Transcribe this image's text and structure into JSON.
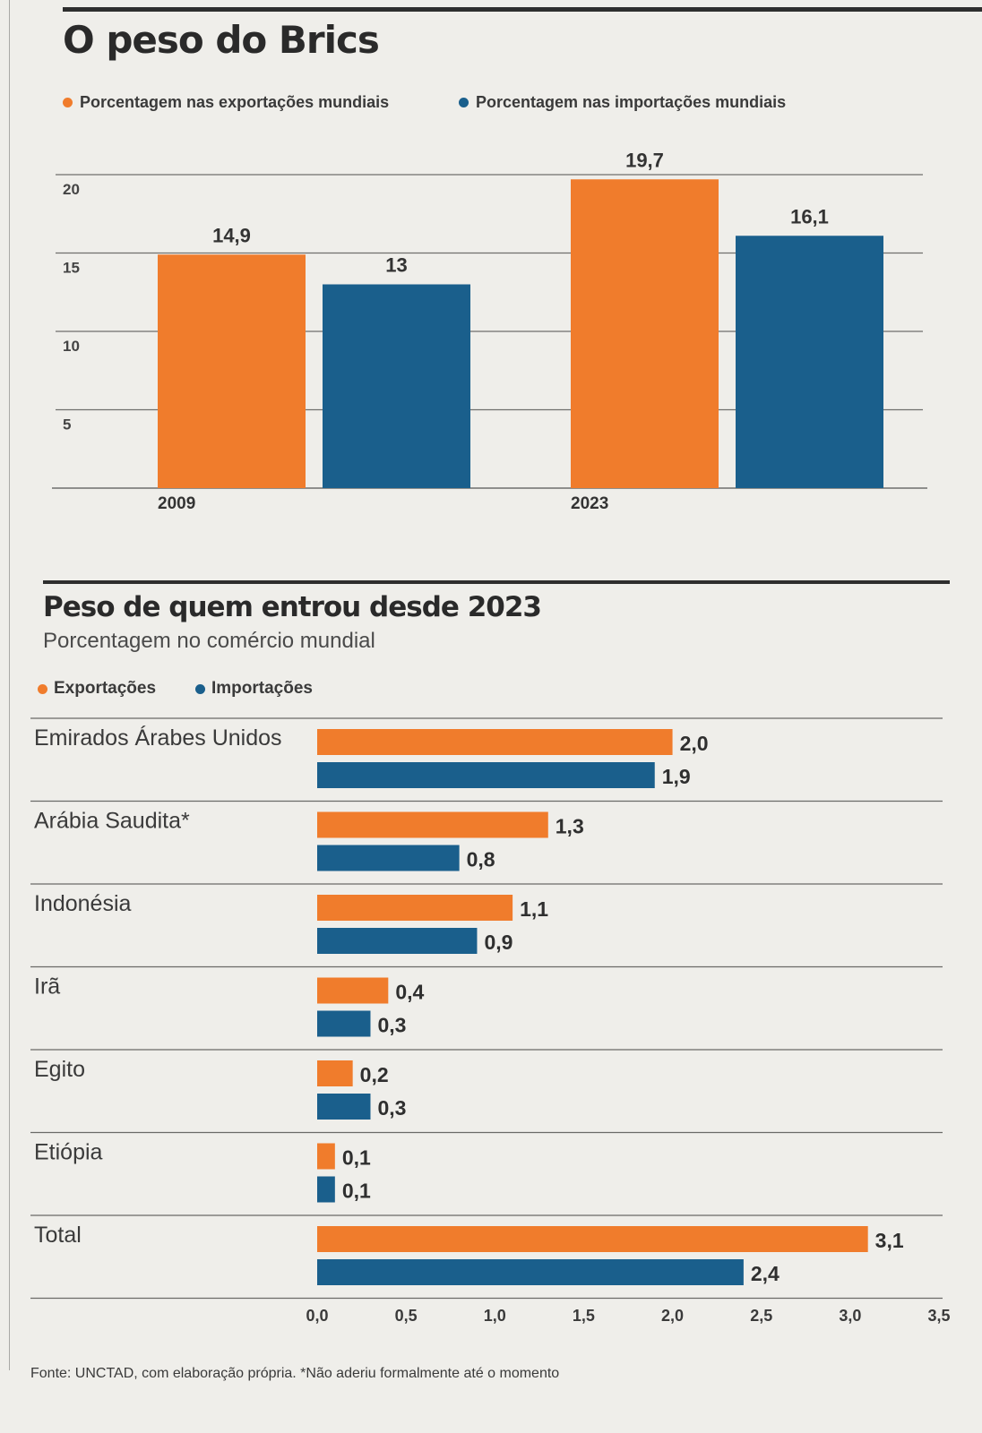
{
  "colors": {
    "exports": "#f07c2c",
    "imports": "#1a5f8c"
  },
  "top_chart_header": {
    "title": "O peso do Brics",
    "legend": [
      {
        "label": "Porcentagem nas exportações mundiais",
        "series": "exports"
      },
      {
        "label": "Porcentagem nas importações mundiais",
        "series": "imports"
      }
    ]
  },
  "bottom_chart_header": {
    "title": "Peso de quem entrou desde 2023",
    "subtitle": "Porcentagem no comércio mundial",
    "legend": [
      {
        "label": "Exportações",
        "series": "exports"
      },
      {
        "label": "Importações",
        "series": "imports"
      }
    ]
  },
  "footer": {
    "source": "Fonte: UNCTAD, com elaboração própria. *Não aderiu formalmente até o momento"
  },
  "chart_data": [
    {
      "type": "bar",
      "title": "O peso do Brics",
      "categories": [
        "2009",
        "2023"
      ],
      "series": [
        {
          "name": "Porcentagem nas exportações mundiais",
          "values": [
            14.9,
            19.7
          ],
          "labels": [
            "14,9",
            "19,7"
          ],
          "color": "#f07c2c"
        },
        {
          "name": "Porcentagem nas importações mundiais",
          "values": [
            13,
            16.1
          ],
          "labels": [
            "13",
            "16,1"
          ],
          "color": "#1a5f8c"
        }
      ],
      "yticks": [
        5,
        10,
        15,
        20
      ],
      "ylim": [
        0,
        20
      ],
      "xlabel": "",
      "ylabel": "",
      "grid": true,
      "legend": "top-left"
    },
    {
      "type": "bar",
      "orientation": "horizontal",
      "title": "Peso de quem entrou desde 2023",
      "subtitle": "Porcentagem no comércio mundial",
      "categories": [
        "Emirados Árabes Unidos",
        "Arábia Saudita*",
        "Indonésia",
        "Irã",
        "Egito",
        "Etiópia",
        "Total"
      ],
      "series": [
        {
          "name": "Exportações",
          "values": [
            2.0,
            1.3,
            1.1,
            0.4,
            0.2,
            0.1,
            3.1
          ],
          "labels": [
            "2,0",
            "1,3",
            "1,1",
            "0,4",
            "0,2",
            "0,1",
            "3,1"
          ],
          "color": "#f07c2c"
        },
        {
          "name": "Importações",
          "values": [
            1.9,
            0.8,
            0.9,
            0.3,
            0.3,
            0.1,
            2.4
          ],
          "labels": [
            "1,9",
            "0,8",
            "0,9",
            "0,3",
            "0,3",
            "0,1",
            "2,4"
          ],
          "color": "#1a5f8c"
        }
      ],
      "xticks": [
        0,
        0.5,
        1.0,
        1.5,
        2.0,
        2.5,
        3.0,
        3.5
      ],
      "xtick_labels": [
        "0,0",
        "0,5",
        "1,0",
        "1,5",
        "2,0",
        "2,5",
        "3,0",
        "3,5"
      ],
      "xlim": [
        0,
        3.5
      ],
      "xlabel": "",
      "ylabel": "",
      "grid": false,
      "legend": "top-left"
    }
  ]
}
